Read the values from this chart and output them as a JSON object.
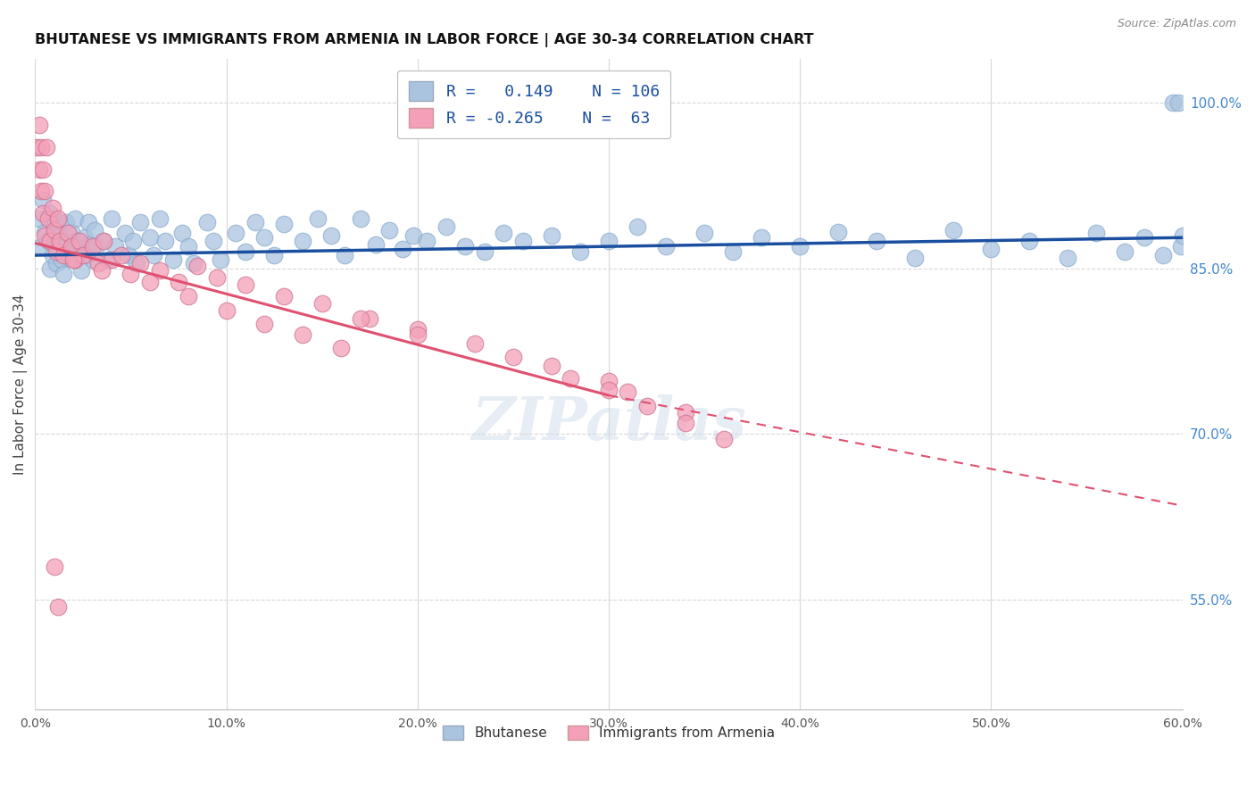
{
  "title": "BHUTANESE VS IMMIGRANTS FROM ARMENIA IN LABOR FORCE | AGE 30-34 CORRELATION CHART",
  "source": "Source: ZipAtlas.com",
  "ylabel": "In Labor Force | Age 30-34",
  "x_min": 0.0,
  "x_max": 0.6,
  "y_min": 0.45,
  "y_max": 1.04,
  "x_ticks": [
    0.0,
    0.1,
    0.2,
    0.3,
    0.4,
    0.5,
    0.6
  ],
  "x_tick_labels": [
    "0.0%",
    "10.0%",
    "20.0%",
    "30.0%",
    "40.0%",
    "50.0%",
    "60.0%"
  ],
  "right_y_ticks": [
    0.55,
    0.7,
    0.85,
    1.0
  ],
  "right_y_labels": [
    "55.0%",
    "70.0%",
    "85.0%",
    "100.0%"
  ],
  "blue_color": "#aac4e0",
  "pink_color": "#f4a0b8",
  "blue_line_color": "#1a4fa0",
  "pink_line_color": "#e05070",
  "legend_blue_color": "#aac4e0",
  "legend_pink_color": "#f4a0b8",
  "bottom_labels": [
    "Bhutanese",
    "Immigrants from Armenia"
  ],
  "grid_color": "#d8d8d8",
  "blue_scatter_x": [
    0.002,
    0.003,
    0.004,
    0.005,
    0.007,
    0.008,
    0.008,
    0.009,
    0.01,
    0.01,
    0.011,
    0.012,
    0.012,
    0.013,
    0.014,
    0.014,
    0.015,
    0.016,
    0.017,
    0.018,
    0.019,
    0.02,
    0.021,
    0.022,
    0.023,
    0.024,
    0.026,
    0.027,
    0.028,
    0.029,
    0.03,
    0.031,
    0.032,
    0.036,
    0.038,
    0.04,
    0.042,
    0.047,
    0.049,
    0.051,
    0.053,
    0.055,
    0.06,
    0.062,
    0.065,
    0.068,
    0.072,
    0.077,
    0.08,
    0.083,
    0.09,
    0.093,
    0.097,
    0.105,
    0.11,
    0.115,
    0.12,
    0.125,
    0.13,
    0.14,
    0.148,
    0.155,
    0.162,
    0.17,
    0.178,
    0.185,
    0.192,
    0.198,
    0.205,
    0.215,
    0.225,
    0.235,
    0.245,
    0.255,
    0.27,
    0.285,
    0.3,
    0.315,
    0.33,
    0.35,
    0.365,
    0.38,
    0.4,
    0.42,
    0.44,
    0.46,
    0.48,
    0.5,
    0.52,
    0.54,
    0.555,
    0.57,
    0.58,
    0.59,
    0.595,
    0.598,
    0.599,
    0.6
  ],
  "blue_scatter_y": [
    0.895,
    0.87,
    0.912,
    0.883,
    0.875,
    0.85,
    0.9,
    0.862,
    0.888,
    0.872,
    0.855,
    0.893,
    0.865,
    0.88,
    0.872,
    0.858,
    0.845,
    0.892,
    0.875,
    0.86,
    0.883,
    0.87,
    0.895,
    0.875,
    0.862,
    0.848,
    0.878,
    0.862,
    0.892,
    0.872,
    0.858,
    0.885,
    0.87,
    0.875,
    0.858,
    0.895,
    0.87,
    0.882,
    0.862,
    0.875,
    0.855,
    0.892,
    0.878,
    0.862,
    0.895,
    0.875,
    0.858,
    0.882,
    0.87,
    0.855,
    0.892,
    0.875,
    0.858,
    0.882,
    0.865,
    0.892,
    0.878,
    0.862,
    0.89,
    0.875,
    0.895,
    0.88,
    0.862,
    0.895,
    0.872,
    0.885,
    0.868,
    0.88,
    0.875,
    0.888,
    0.87,
    0.865,
    0.882,
    0.875,
    0.88,
    0.865,
    0.875,
    0.888,
    0.87,
    0.882,
    0.865,
    0.878,
    0.87,
    0.883,
    0.875,
    0.86,
    0.885,
    0.868,
    0.875,
    0.86,
    0.882,
    0.865,
    0.878,
    0.862,
    1.0,
    1.0,
    0.87,
    0.88
  ],
  "pink_scatter_x": [
    0.001,
    0.002,
    0.002,
    0.003,
    0.003,
    0.004,
    0.004,
    0.005,
    0.005,
    0.006,
    0.007,
    0.008,
    0.009,
    0.01,
    0.011,
    0.012,
    0.013,
    0.015,
    0.017,
    0.019,
    0.021,
    0.023,
    0.025,
    0.03,
    0.033,
    0.036,
    0.04,
    0.045,
    0.05,
    0.055,
    0.065,
    0.075,
    0.085,
    0.095,
    0.11,
    0.13,
    0.15,
    0.175,
    0.2,
    0.23,
    0.27,
    0.3,
    0.01,
    0.012,
    0.17,
    0.2,
    0.25,
    0.28,
    0.31,
    0.34,
    0.02,
    0.035,
    0.06,
    0.08,
    0.1,
    0.12,
    0.14,
    0.16,
    0.3,
    0.32,
    0.34,
    0.36
  ],
  "pink_scatter_y": [
    0.96,
    0.94,
    0.98,
    0.92,
    0.96,
    0.9,
    0.94,
    0.92,
    0.88,
    0.96,
    0.895,
    0.875,
    0.905,
    0.885,
    0.865,
    0.895,
    0.875,
    0.862,
    0.882,
    0.87,
    0.858,
    0.875,
    0.862,
    0.87,
    0.855,
    0.875,
    0.858,
    0.862,
    0.845,
    0.855,
    0.848,
    0.838,
    0.852,
    0.842,
    0.835,
    0.825,
    0.818,
    0.805,
    0.795,
    0.782,
    0.762,
    0.748,
    0.58,
    0.543,
    0.805,
    0.79,
    0.77,
    0.75,
    0.738,
    0.72,
    0.858,
    0.848,
    0.838,
    0.825,
    0.812,
    0.8,
    0.79,
    0.778,
    0.74,
    0.725,
    0.71,
    0.695
  ]
}
